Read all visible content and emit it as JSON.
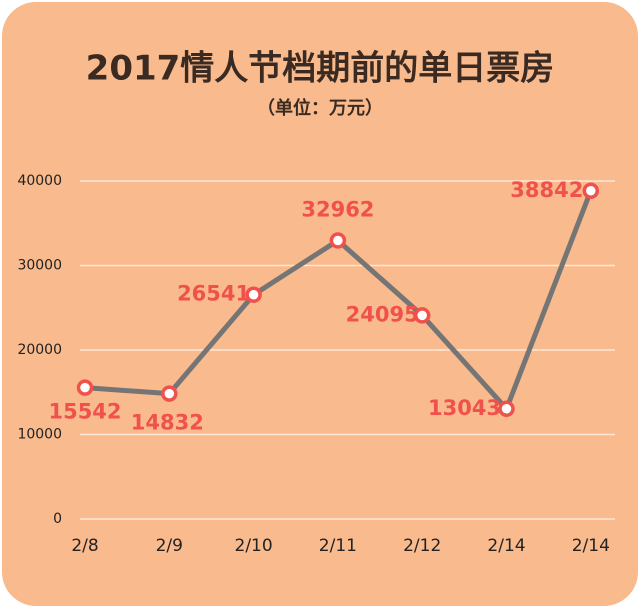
{
  "chart_data": {
    "type": "line",
    "title": "2017情人节档期前的单日票房",
    "subtitle": "（单位：万元）",
    "categories": [
      "2/8",
      "2/9",
      "2/10",
      "2/11",
      "2/12",
      "2/14",
      "2/14"
    ],
    "values": [
      15542,
      14832,
      26541,
      32962,
      24095,
      13043,
      38842
    ],
    "color": "#757575",
    "marker_color": "#f0514c",
    "label_color": "#f0514c",
    "ylim": [
      0,
      40000
    ],
    "yticks": [
      0,
      10000,
      20000,
      30000,
      40000
    ],
    "grid": true
  }
}
